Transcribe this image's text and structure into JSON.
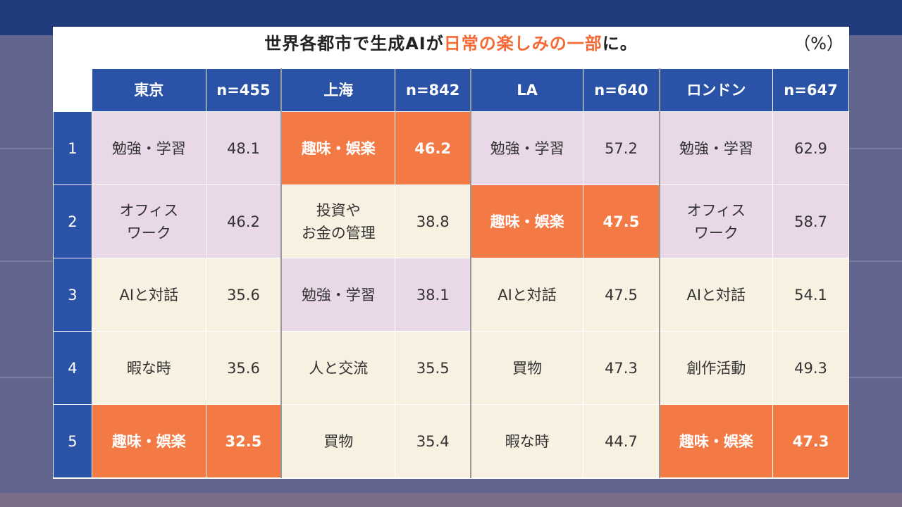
{
  "title": {
    "prefix": "世界各都市で生成AIが",
    "highlight": "日常の楽しみの一部",
    "suffix": "に。"
  },
  "unit": "（%）",
  "colors": {
    "header": "#2a52a6",
    "study_office": "#e8d8e8",
    "other": "#f8f0e1",
    "hobby": "#f47a45",
    "title_highlight": "#f26b36"
  },
  "chart_data": {
    "type": "table",
    "ranks": [
      "1",
      "2",
      "3",
      "4",
      "5"
    ],
    "cities": [
      {
        "name": "東京",
        "n": "n=455",
        "rows": [
          {
            "label": "勉強・学習",
            "value": "48.1",
            "style": "lav"
          },
          {
            "label": "オフィス\nワーク",
            "value": "46.2",
            "style": "lav"
          },
          {
            "label": "AIと対話",
            "value": "35.6",
            "style": "cream"
          },
          {
            "label": "暇な時",
            "value": "35.6",
            "style": "cream"
          },
          {
            "label": "趣味・娯楽",
            "value": "32.5",
            "style": "orange"
          }
        ]
      },
      {
        "name": "上海",
        "n": "n=842",
        "rows": [
          {
            "label": "趣味・娯楽",
            "value": "46.2",
            "style": "orange"
          },
          {
            "label": "投資や\nお金の管理",
            "value": "38.8",
            "style": "cream"
          },
          {
            "label": "勉強・学習",
            "value": "38.1",
            "style": "lav"
          },
          {
            "label": "人と交流",
            "value": "35.5",
            "style": "cream"
          },
          {
            "label": "買物",
            "value": "35.4",
            "style": "cream"
          }
        ]
      },
      {
        "name": "LA",
        "n": "n=640",
        "rows": [
          {
            "label": "勉強・学習",
            "value": "57.2",
            "style": "lav"
          },
          {
            "label": "趣味・娯楽",
            "value": "47.5",
            "style": "orange"
          },
          {
            "label": "AIと対話",
            "value": "47.5",
            "style": "cream"
          },
          {
            "label": "買物",
            "value": "47.3",
            "style": "cream"
          },
          {
            "label": "暇な時",
            "value": "44.7",
            "style": "cream"
          }
        ]
      },
      {
        "name": "ロンドン",
        "n": "n=647",
        "rows": [
          {
            "label": "勉強・学習",
            "value": "62.9",
            "style": "lav"
          },
          {
            "label": "オフィス\nワーク",
            "value": "58.7",
            "style": "lav"
          },
          {
            "label": "AIと対話",
            "value": "54.1",
            "style": "cream"
          },
          {
            "label": "創作活動",
            "value": "49.3",
            "style": "cream"
          },
          {
            "label": "趣味・娯楽",
            "value": "47.3",
            "style": "orange"
          }
        ]
      }
    ]
  }
}
